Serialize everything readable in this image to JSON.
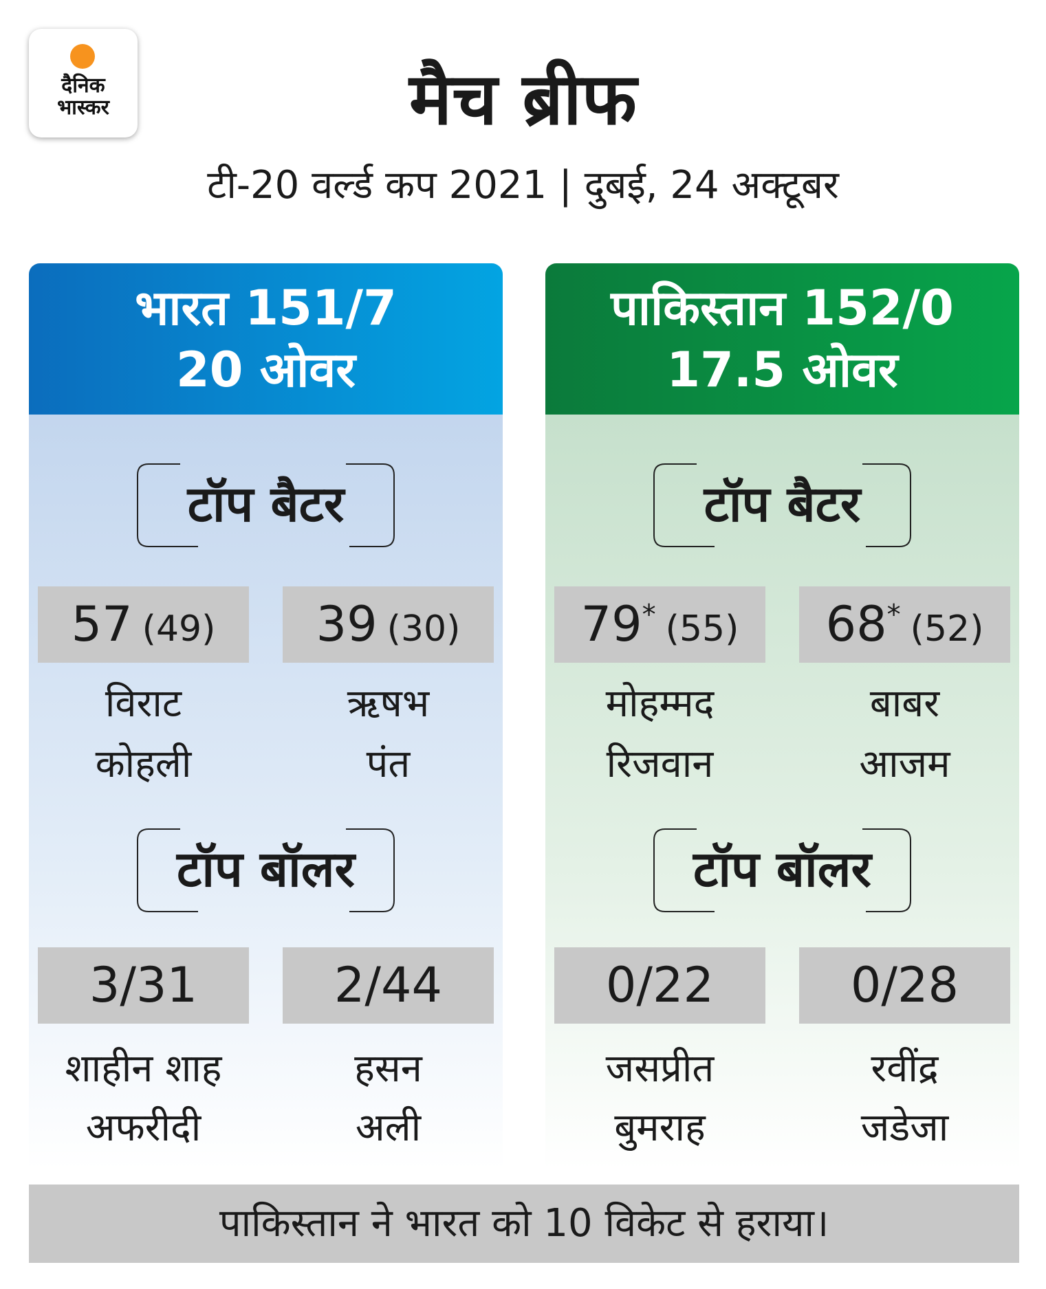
{
  "logo": {
    "lines": [
      "दैनिक",
      "भास्कर"
    ]
  },
  "title": "मैच ब्रीफ",
  "subtitle": "टी-20 वर्ल्ड कप 2021 | दुबई, 24 अक्टूबर",
  "teams": [
    {
      "name": "भारत 151/7",
      "overs": "20 ओवर",
      "batters_heading": "टॉप बैटर",
      "batters": [
        {
          "runs": "57",
          "balls": "(49)",
          "name": [
            "विराट",
            "कोहली"
          ]
        },
        {
          "runs": "39",
          "balls": "(30)",
          "name": [
            "ऋषभ",
            "पंत"
          ]
        }
      ],
      "bowlers_heading": "टॉप बॉलर",
      "bowlers": [
        {
          "figures": "3/31",
          "name": [
            "शाहीन शाह",
            "अफरीदी"
          ]
        },
        {
          "figures": "2/44",
          "name": [
            "हसन",
            "अली"
          ]
        }
      ]
    },
    {
      "name": "पाकिस्तान 152/0",
      "overs": "17.5 ओवर",
      "batters_heading": "टॉप बैटर",
      "batters": [
        {
          "runs": "79",
          "not_out": "*",
          "balls": "(55)",
          "name": [
            "मोहम्मद",
            "रिजवान"
          ]
        },
        {
          "runs": "68",
          "not_out": "*",
          "balls": "(52)",
          "name": [
            "बाबर",
            "आजम"
          ]
        }
      ],
      "bowlers_heading": "टॉप बॉलर",
      "bowlers": [
        {
          "figures": "0/22",
          "name": [
            "जसप्रीत",
            "बुमराह"
          ]
        },
        {
          "figures": "0/28",
          "name": [
            "रवींद्र",
            "जडेजा"
          ]
        }
      ]
    }
  ],
  "result": "पाकिस्तान ने भारत को 10 विकेट से हराया।"
}
